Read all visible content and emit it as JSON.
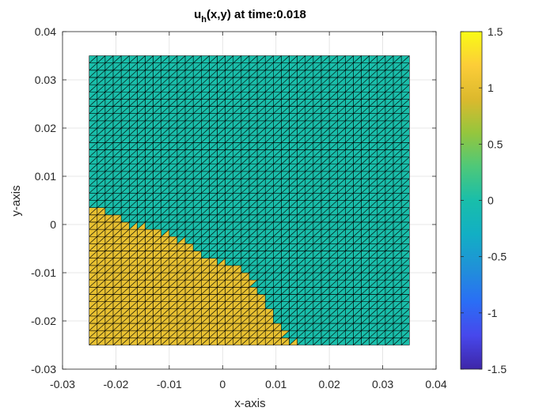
{
  "chart_data": {
    "type": "heatmap",
    "title": "u",
    "title_sub": "h",
    "title_rest": "(x,y) at time:0.018",
    "xlabel": "x-axis",
    "ylabel": "y-axis",
    "xlim": [
      -0.03,
      0.04
    ],
    "ylim": [
      -0.03,
      0.04
    ],
    "xticks": [
      "-0.03",
      "-0.02",
      "-0.01",
      "0",
      "0.01",
      "0.02",
      "0.03",
      "0.04"
    ],
    "yticks": [
      "-0.03",
      "-0.02",
      "-0.01",
      "0",
      "0.01",
      "0.02",
      "0.03",
      "0.04"
    ],
    "xtick_values": [
      -0.03,
      -0.02,
      -0.01,
      0,
      0.01,
      0.02,
      0.03,
      0.04
    ],
    "ytick_values": [
      -0.03,
      -0.02,
      -0.01,
      0,
      0.01,
      0.02,
      0.03,
      0.04
    ],
    "grid": true,
    "mesh": {
      "x_range": [
        -0.025,
        0.035
      ],
      "y_range": [
        -0.025,
        0.035
      ],
      "divisions_x": 40,
      "divisions_y": 40,
      "value_outside": 0.0,
      "value_inside": 1.0,
      "region_boundary": [
        [
          -0.025,
          0.003
        ],
        [
          -0.023,
          0.003
        ],
        [
          -0.0195,
          0.0015
        ],
        [
          -0.017,
          -0.0005
        ],
        [
          -0.0145,
          -0.0005
        ],
        [
          -0.0105,
          -0.002
        ],
        [
          -0.006,
          -0.004
        ],
        [
          -0.002,
          -0.0075
        ],
        [
          0.0015,
          -0.008
        ],
        [
          0.0045,
          -0.0105
        ],
        [
          0.0065,
          -0.0135
        ],
        [
          0.0095,
          -0.019
        ],
        [
          0.011,
          -0.0215
        ],
        [
          0.0125,
          -0.024
        ],
        [
          0.0145,
          -0.025
        ]
      ]
    },
    "colorbar": {
      "range": [
        -1.5,
        1.5
      ],
      "ticks": [
        "1.5",
        "1",
        "0.5",
        "0",
        "-0.5",
        "-1",
        "-1.5"
      ],
      "tick_values": [
        1.5,
        1,
        0.5,
        0,
        -0.5,
        -1,
        -1.5
      ],
      "colormap": "parula"
    }
  }
}
